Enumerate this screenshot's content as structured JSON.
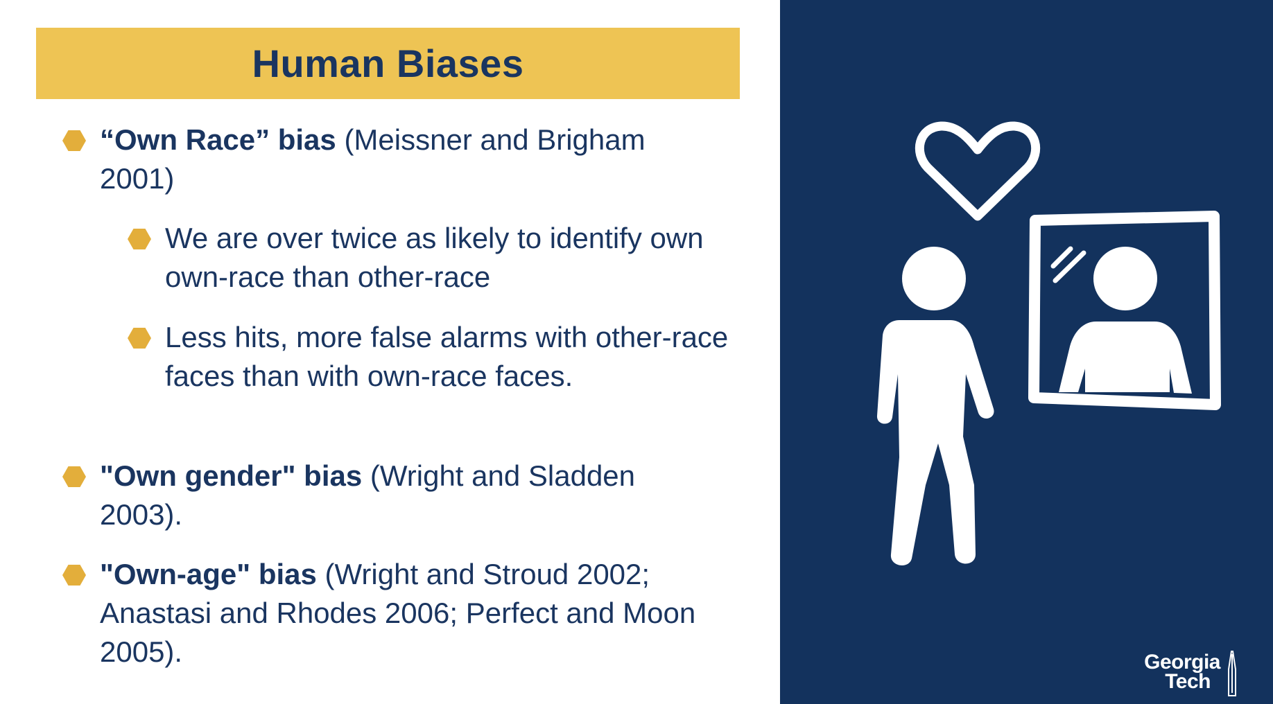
{
  "slide": {
    "title": "Human Biases",
    "bullets": [
      {
        "bold": "“Own Race” bias",
        "text": " (Meissner and Brigham 2001)",
        "sub": [
          "We are over twice as likely to identify own own-race than other-race",
          "Less hits, more false alarms with other-race faces than with own-race faces."
        ]
      },
      {
        "bold": "\"Own gender\" bias",
        "text": " (Wright and Sladden 2003)."
      },
      {
        "bold": "\"Own-age\" bias",
        "text": " (Wright and Stroud 2002; Anastasi and Rhodes 2006; Perfect and Moon 2005)."
      }
    ]
  },
  "branding": {
    "logo_line1": "Georgia",
    "logo_line2": "Tech"
  },
  "colors": {
    "navy": "#13325d",
    "gold_bar": "#eec454",
    "bullet_gold": "#e3ae3b",
    "text": "#1a3560"
  },
  "icons": [
    "heart-icon",
    "person-icon",
    "mirror-icon",
    "reflection-icon",
    "bullet-hexagon-icon"
  ]
}
